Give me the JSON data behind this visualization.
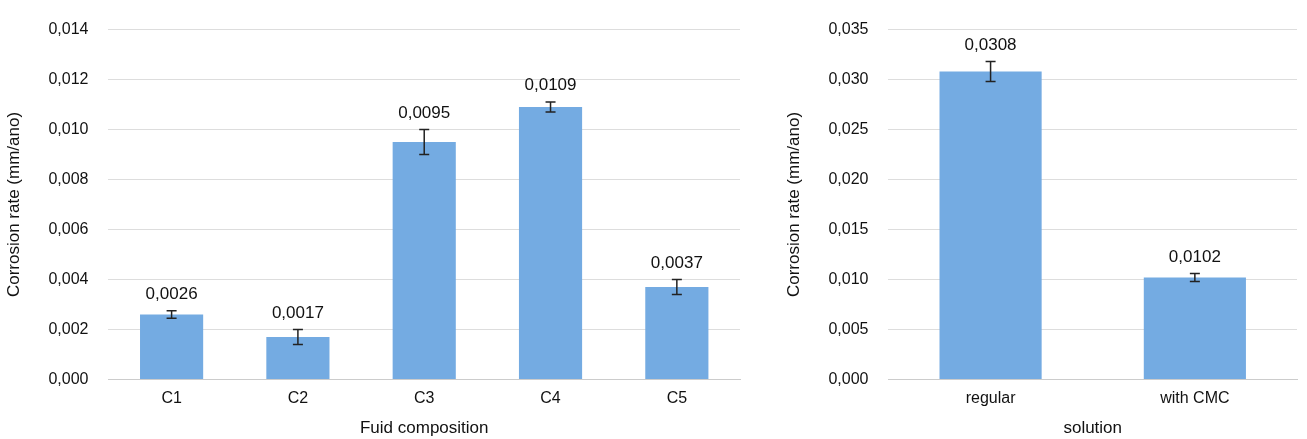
{
  "chart_data": [
    {
      "type": "bar",
      "xlabel": "Fuid composition",
      "ylabel": "Corrosion rate (mm/ano)",
      "categories": [
        "C1",
        "C2",
        "C3",
        "C4",
        "C5"
      ],
      "values": [
        0.0026,
        0.0017,
        0.0095,
        0.0109,
        0.0037
      ],
      "errors": [
        0.00015,
        0.0003,
        0.0005,
        0.0002,
        0.0003
      ],
      "value_labels": [
        "0,0026",
        "0,0017",
        "0,0095",
        "0,0109",
        "0,0037"
      ],
      "color": "#74abe2",
      "ylim": [
        0,
        0.014
      ],
      "yticks": [
        {
          "value": 0,
          "label": "0,000"
        },
        {
          "value": 0.002,
          "label": "0,002"
        },
        {
          "value": 0.004,
          "label": "0,004"
        },
        {
          "value": 0.006,
          "label": "0,006"
        },
        {
          "value": 0.008,
          "label": "0,008"
        },
        {
          "value": 0.01,
          "label": "0,010"
        },
        {
          "value": 0.012,
          "label": "0,012"
        },
        {
          "value": 0.014,
          "label": "0,014"
        }
      ],
      "grid": "y",
      "legend": false
    },
    {
      "type": "bar",
      "xlabel": "solution",
      "ylabel": "Corrosion rate (mm/ano)",
      "categories": [
        "regular",
        "with CMC"
      ],
      "values": [
        0.0308,
        0.0102
      ],
      "errors": [
        0.001,
        0.0004
      ],
      "value_labels": [
        "0,0308",
        "0,0102"
      ],
      "color": "#74abe2",
      "ylim": [
        0,
        0.035
      ],
      "yticks": [
        {
          "value": 0,
          "label": "0,000"
        },
        {
          "value": 0.005,
          "label": "0,005"
        },
        {
          "value": 0.01,
          "label": "0,010"
        },
        {
          "value": 0.015,
          "label": "0,015"
        },
        {
          "value": 0.02,
          "label": "0,020"
        },
        {
          "value": 0.025,
          "label": "0,025"
        },
        {
          "value": 0.03,
          "label": "0,030"
        },
        {
          "value": 0.035,
          "label": "0,035"
        }
      ],
      "grid": "y",
      "legend": false
    }
  ]
}
